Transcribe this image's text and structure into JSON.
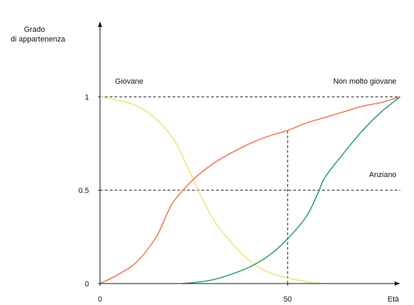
{
  "chart_data": {
    "type": "line",
    "title": "",
    "ylabel_lines": [
      "Grado",
      "di appartenenza"
    ],
    "xlabel": "Età",
    "xlim": [
      0,
      80
    ],
    "ylim": [
      0,
      1.3
    ],
    "x_ticks": [
      0,
      50
    ],
    "x_tick_labels": [
      "0",
      "50"
    ],
    "y_ticks": [
      0,
      0.5,
      1
    ],
    "y_tick_labels": [
      "0",
      "0.5",
      "1"
    ],
    "grid": false,
    "reference_lines": [
      {
        "axis": "y",
        "value": 1
      },
      {
        "axis": "y",
        "value": 0.5
      },
      {
        "axis": "x",
        "value": 50,
        "from": 0,
        "to": 0.82
      }
    ],
    "colors": {
      "axis": "#111111",
      "reference": "#111111",
      "giovane": "#f2e27a",
      "non_molto_giovane": "#f07a52",
      "anziano": "#2aa36a"
    },
    "series": [
      {
        "name": "Giovane",
        "color": "#f2e27a",
        "x": [
          0,
          5,
          10,
          15,
          20,
          25,
          30,
          35,
          40,
          45,
          50,
          55,
          57,
          60
        ],
        "y": [
          1,
          0.98,
          0.95,
          0.88,
          0.76,
          0.55,
          0.35,
          0.22,
          0.12,
          0.06,
          0.03,
          0.01,
          0.003,
          0
        ]
      },
      {
        "name": "Non molto giovane",
        "color": "#f07a52",
        "x": [
          0,
          5,
          10,
          15,
          18,
          20,
          25,
          30,
          35,
          40,
          45,
          50,
          55,
          60,
          65,
          70,
          75,
          80
        ],
        "y": [
          0,
          0.05,
          0.12,
          0.25,
          0.38,
          0.45,
          0.56,
          0.64,
          0.7,
          0.75,
          0.79,
          0.82,
          0.86,
          0.89,
          0.92,
          0.95,
          0.97,
          1
        ]
      },
      {
        "name": "Anziano",
        "color": "#2aa36a",
        "x": [
          22,
          25,
          30,
          35,
          40,
          45,
          50,
          55,
          58,
          60,
          65,
          70,
          75,
          80
        ],
        "y": [
          0,
          0.005,
          0.02,
          0.05,
          0.09,
          0.15,
          0.24,
          0.36,
          0.48,
          0.57,
          0.7,
          0.82,
          0.92,
          1
        ]
      }
    ],
    "annotations": [
      {
        "text": "Giovane",
        "x": 4,
        "y": 1.07
      },
      {
        "text": "Non molto giovane",
        "x": 79,
        "y": 1.07,
        "anchor": "end"
      },
      {
        "text": "Anziano",
        "x": 79,
        "y": 0.57,
        "anchor": "end"
      }
    ]
  }
}
